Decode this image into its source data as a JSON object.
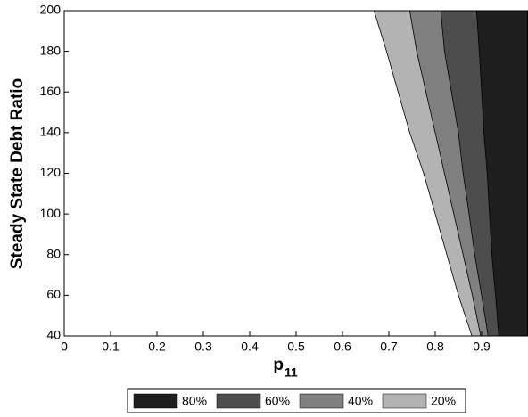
{
  "chart_data": {
    "type": "filled-contour",
    "xlabel": "p",
    "xlabel_subscript": "11",
    "ylabel": "Steady State Debt Ratio",
    "xlim": [
      0,
      1
    ],
    "ylim": [
      40,
      200
    ],
    "xticks": [
      0,
      0.1,
      0.2,
      0.3,
      0.4,
      0.5,
      0.6,
      0.7,
      0.8,
      0.9
    ],
    "yticks": [
      40,
      60,
      80,
      100,
      120,
      140,
      160,
      180,
      200
    ],
    "y": [
      40,
      60,
      80,
      100,
      120,
      140,
      160,
      180,
      200
    ],
    "legend": "bottom",
    "series": [
      {
        "name": "80%",
        "color": "#1e1e1e",
        "x": [
          0.937,
          0.93,
          0.922,
          0.917,
          0.912,
          0.905,
          0.9,
          0.895,
          0.889
        ]
      },
      {
        "name": "60%",
        "color": "#4d4d4d",
        "x": [
          0.914,
          0.9,
          0.885,
          0.873,
          0.86,
          0.85,
          0.835,
          0.82,
          0.812
        ]
      },
      {
        "name": "40%",
        "color": "#808080",
        "x": [
          0.898,
          0.88,
          0.86,
          0.84,
          0.82,
          0.8,
          0.78,
          0.76,
          0.745
        ]
      },
      {
        "name": "20%",
        "color": "#b3b3b3",
        "x": [
          0.879,
          0.85,
          0.825,
          0.8,
          0.775,
          0.745,
          0.72,
          0.695,
          0.668
        ]
      }
    ]
  }
}
